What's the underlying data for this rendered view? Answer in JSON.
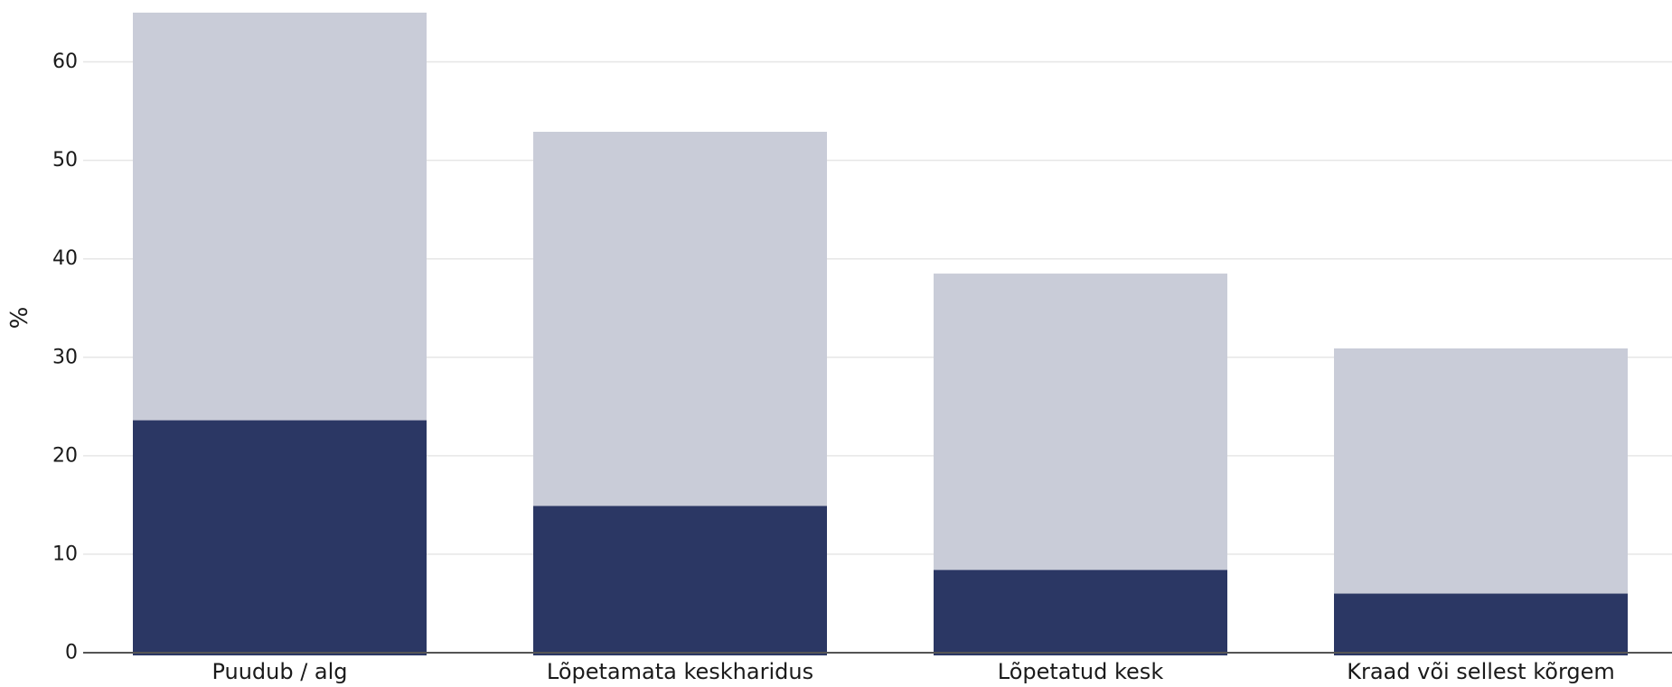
{
  "chart_data": {
    "type": "bar",
    "stacked": false,
    "overlay": true,
    "title": "",
    "xlabel": "",
    "ylabel": "%",
    "ylim": [
      0,
      65
    ],
    "yticks": [
      0,
      10,
      20,
      30,
      40,
      50,
      60
    ],
    "grid": true,
    "categories": [
      "Puudub / alg",
      "Lõpetamata keskharidus",
      "Lõpetatud kesk",
      "Kraad või sellest kõrgem"
    ],
    "series": [
      {
        "values": [
          65,
          52.9,
          38.5,
          30.9
        ],
        "color": "#c9ccd8"
      },
      {
        "values": [
          23.6,
          14.9,
          8.4,
          6.0
        ],
        "color": "#2b3764"
      }
    ]
  }
}
